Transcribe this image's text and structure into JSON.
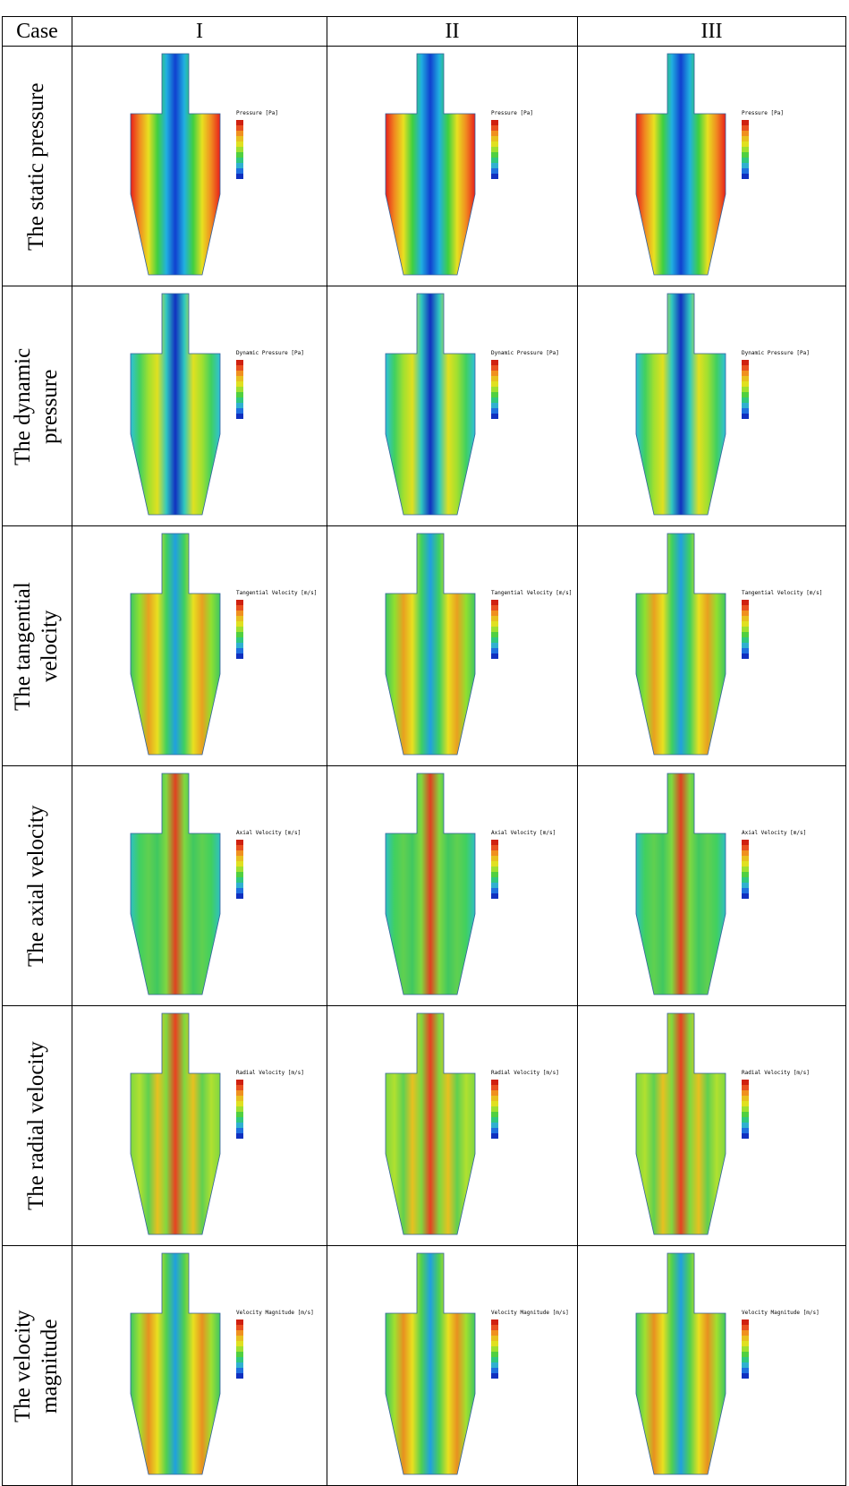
{
  "table": {
    "header": [
      "Case",
      "I",
      "II",
      "III"
    ],
    "rows": [
      {
        "label": [
          "The static pressure"
        ],
        "legends": [
          "Pressure [Pa]",
          "Pressure [Pa]",
          "Pressure [Pa]"
        ]
      },
      {
        "label": [
          "The dynamic",
          "pressure"
        ],
        "legends": [
          "Dynamic Pressure [Pa]",
          "Dynamic Pressure [Pa]",
          "Dynamic Pressure [Pa]"
        ]
      },
      {
        "label": [
          "The tangential",
          "velocity"
        ],
        "legends": [
          "Tangential Velocity [m/s]",
          "Tangential Velocity [m/s]",
          "Tangential Velocity [m/s]"
        ]
      },
      {
        "label": [
          "The axial velocity"
        ],
        "legends": [
          "Axial Velocity [m/s]",
          "Axial Velocity [m/s]",
          "Axial Velocity [m/s]"
        ]
      },
      {
        "label": [
          "The radial velocity"
        ],
        "legends": [
          "Radial Velocity [m/s]",
          "Radial Velocity [m/s]",
          "Radial Velocity [m/s]"
        ]
      },
      {
        "label": [
          "The velocity",
          "magnitude"
        ],
        "legends": [
          "Velocity Magnitude [m/s]",
          "Velocity Magnitude [m/s]",
          "Velocity Magnitude [m/s]"
        ]
      }
    ]
  }
}
